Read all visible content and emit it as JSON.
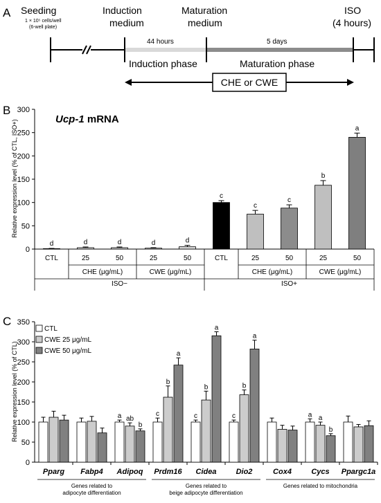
{
  "panel_a": {
    "letter": "A",
    "seeding": "Seeding",
    "seeding_detail1": "1 × 10⁵ cells/well",
    "seeding_detail2": "(6-well plate)",
    "induction_label1": "Induction",
    "induction_label2": "medium",
    "maturation_label1": "Maturation",
    "maturation_label2": "medium",
    "iso_label1": "ISO",
    "iso_label2": "(4 hours)",
    "hours44": "44 hours",
    "days5": "5 days",
    "induction_phase": "Induction phase",
    "maturation_phase": "Maturation phase",
    "treatment_box": "CHE or CWE",
    "colors": {
      "induction_bar": "#d9d9d9",
      "maturation_bar": "#8c8c8c"
    }
  },
  "panel_b": {
    "letter": "B",
    "title_gene": "Ucp-1",
    "title_suffix": " mRNA",
    "row1_labels": [
      "CTL",
      "25",
      "50",
      "25",
      "50",
      "CTL",
      "25",
      "50",
      "25",
      "50"
    ],
    "row2_labels": [
      "CHE (μg/mL)",
      "CWE (μg/mL)",
      "CHE (μg/mL)",
      "CWE (μg/mL)"
    ],
    "row3_labels": [
      "ISO−",
      "ISO+"
    ]
  },
  "panel_c": {
    "letter": "C",
    "gene_groups": [
      "Genes related to\nadipocyte differentiation",
      "Genes related to\nbeige adipocyte differentiation",
      "Genes related to mitochondria"
    ]
  },
  "chart_data": [
    {
      "type": "bar",
      "ylabel": "Relative expression level (% of CTL, ISO+)",
      "ylim": [
        0,
        300
      ],
      "yticks": [
        0,
        50,
        100,
        150,
        200,
        250,
        300
      ],
      "categories": [
        "CTL",
        "25",
        "50",
        "25",
        "50",
        "CTL",
        "25",
        "50",
        "25",
        "50"
      ],
      "values": [
        1,
        3,
        3,
        2,
        5,
        100,
        75,
        88,
        137,
        240
      ],
      "errors": [
        0.5,
        1.5,
        1.5,
        1,
        3,
        4,
        8,
        7,
        10,
        9
      ],
      "sig_letters": [
        "d",
        "d",
        "d",
        "d",
        "d",
        "c",
        "c",
        "c",
        "b",
        "a"
      ],
      "colors": [
        "#ffffff",
        "#d9d9d9",
        "#d9d9d9",
        "#d9d9d9",
        "#d9d9d9",
        "#000000",
        "#bfbfbf",
        "#8c8c8c",
        "#bfbfbf",
        "#7f7f7f"
      ],
      "grid": false
    },
    {
      "type": "bar",
      "ylabel": "Relative expression level (% of CTL)",
      "ylim": [
        0,
        350
      ],
      "yticks": [
        0,
        50,
        100,
        150,
        200,
        250,
        300,
        350
      ],
      "categories": [
        "Pparg",
        "Fabp4",
        "Adipoq",
        "Prdm16",
        "Cidea",
        "Dio2",
        "Cox4",
        "Cycs",
        "Ppargc1a"
      ],
      "series": [
        {
          "name": "CTL",
          "color": "#ffffff",
          "values": [
            100,
            100,
            100,
            100,
            100,
            100,
            100,
            100,
            100
          ],
          "errors": [
            12,
            10,
            5,
            10,
            5,
            5,
            10,
            8,
            15
          ],
          "letters": [
            "",
            "",
            "a",
            "c",
            "c",
            "c",
            "",
            "a",
            ""
          ]
        },
        {
          "name": "CWE 25 μg/mL",
          "color": "#cccccc",
          "values": [
            112,
            102,
            90,
            162,
            155,
            168,
            82,
            92,
            88
          ],
          "errors": [
            15,
            12,
            8,
            28,
            22,
            12,
            10,
            8,
            6
          ],
          "letters": [
            "",
            "",
            "ab",
            "b",
            "b",
            "b",
            "",
            "a",
            ""
          ]
        },
        {
          "name": "CWE 50 μg/mL",
          "color": "#808080",
          "values": [
            105,
            73,
            78,
            242,
            315,
            282,
            80,
            66,
            91
          ],
          "errors": [
            12,
            12,
            5,
            18,
            10,
            22,
            10,
            5,
            12
          ],
          "letters": [
            "",
            "",
            "b",
            "a",
            "a",
            "a",
            "",
            "b",
            ""
          ]
        }
      ],
      "legend": "top-left",
      "grid": false
    }
  ]
}
